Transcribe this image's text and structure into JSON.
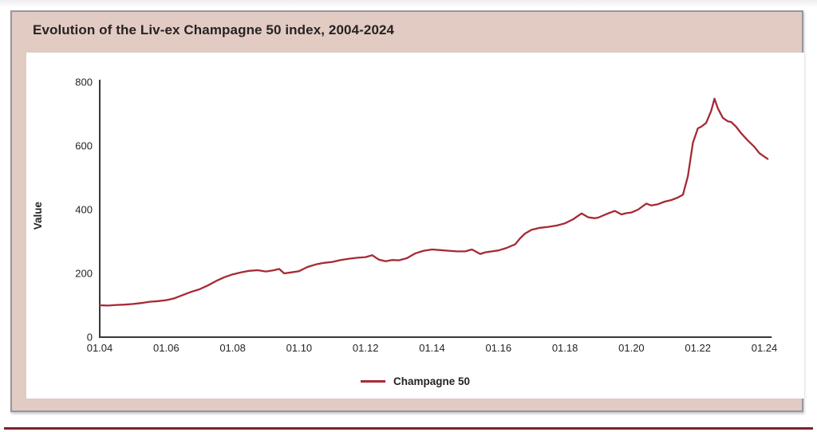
{
  "card": {
    "title": "Evolution of the Liv-ex Champagne 50 index, 2004-2024"
  },
  "colors": {
    "frame_background": "#e1cbc3",
    "frame_border": "#97969e",
    "panel_background": "#ffffff",
    "axis": "#3a3637",
    "text": "#272223",
    "series_line": "#a52a36",
    "bottom_rule": "#7d222b"
  },
  "chart_data": {
    "type": "line",
    "title": "Evolution of the Liv-ex Champagne 50 index, 2004-2024",
    "xlabel": "",
    "ylabel": "Value",
    "grid": false,
    "legend_position": "bottom-center",
    "xlim": [
      2004,
      2024.15
    ],
    "ylim": [
      0,
      800
    ],
    "y_ticks": [
      0,
      200,
      400,
      600,
      800
    ],
    "x_tick_years": [
      2004,
      2006,
      2008,
      2010,
      2012,
      2014,
      2016,
      2018,
      2020,
      2022,
      2024
    ],
    "x_tick_labels": [
      "01.04",
      "01.06",
      "01.08",
      "01.10",
      "01.12",
      "01.14",
      "01.16",
      "01.18",
      "01.20",
      "01.22",
      "01.24"
    ],
    "series": [
      {
        "name": "Champagne 50",
        "color": "#a52a36",
        "x": [
          2004.0,
          2004.25,
          2004.5,
          2004.75,
          2005.0,
          2005.25,
          2005.5,
          2005.75,
          2006.0,
          2006.25,
          2006.5,
          2006.75,
          2007.0,
          2007.25,
          2007.5,
          2007.75,
          2008.0,
          2008.25,
          2008.5,
          2008.75,
          2009.0,
          2009.25,
          2009.4,
          2009.55,
          2009.75,
          2010.0,
          2010.25,
          2010.5,
          2010.75,
          2011.0,
          2011.25,
          2011.5,
          2011.75,
          2012.0,
          2012.2,
          2012.4,
          2012.6,
          2012.8,
          2013.0,
          2013.25,
          2013.5,
          2013.75,
          2014.0,
          2014.25,
          2014.5,
          2014.75,
          2015.0,
          2015.2,
          2015.45,
          2015.6,
          2015.8,
          2016.0,
          2016.25,
          2016.5,
          2016.65,
          2016.8,
          2017.0,
          2017.25,
          2017.5,
          2017.75,
          2018.0,
          2018.25,
          2018.5,
          2018.7,
          2018.9,
          2019.0,
          2019.25,
          2019.5,
          2019.7,
          2019.85,
          2020.0,
          2020.2,
          2020.45,
          2020.6,
          2020.8,
          2021.0,
          2021.2,
          2021.4,
          2021.55,
          2021.7,
          2021.85,
          2022.0,
          2022.1,
          2022.25,
          2022.4,
          2022.5,
          2022.6,
          2022.75,
          2022.9,
          2023.0,
          2023.15,
          2023.3,
          2023.5,
          2023.7,
          2023.85,
          2024.0,
          2024.1
        ],
        "values": [
          100,
          99,
          101,
          102,
          104,
          107,
          111,
          113,
          116,
          122,
          132,
          142,
          150,
          162,
          176,
          188,
          197,
          203,
          208,
          210,
          206,
          210,
          214,
          200,
          203,
          207,
          220,
          228,
          233,
          236,
          242,
          246,
          249,
          251,
          257,
          243,
          238,
          242,
          241,
          248,
          263,
          271,
          275,
          273,
          271,
          269,
          269,
          275,
          261,
          266,
          269,
          272,
          280,
          291,
          310,
          325,
          337,
          343,
          346,
          350,
          357,
          370,
          388,
          376,
          373,
          375,
          386,
          396,
          385,
          389,
          391,
          400,
          419,
          413,
          417,
          425,
          430,
          438,
          447,
          505,
          610,
          655,
          660,
          672,
          710,
          748,
          718,
          688,
          677,
          675,
          660,
          640,
          617,
          597,
          577,
          566,
          559
        ]
      }
    ]
  }
}
